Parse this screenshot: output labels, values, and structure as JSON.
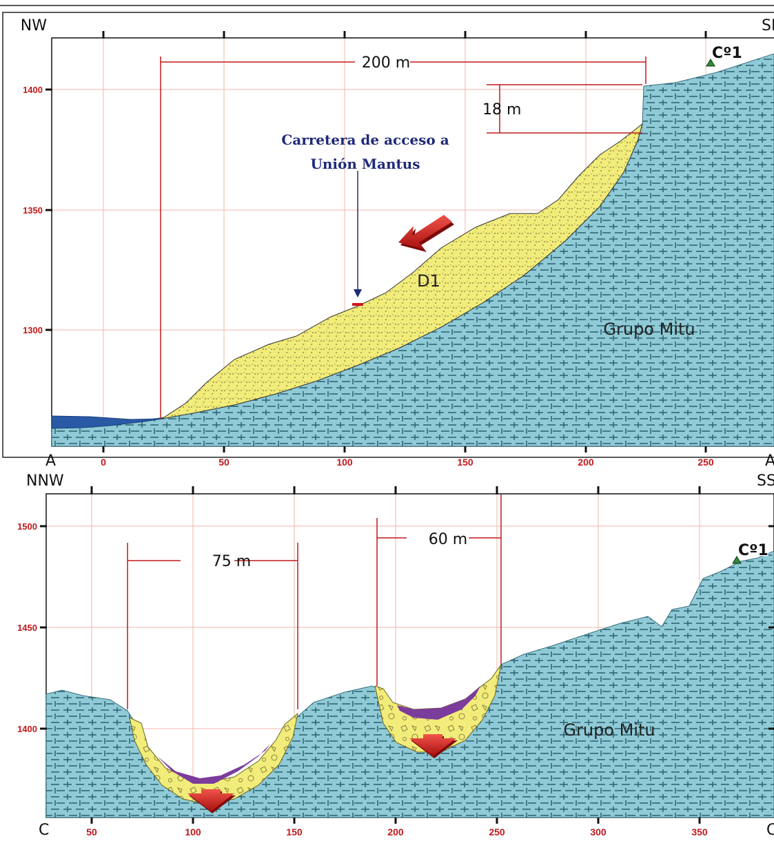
{
  "section_top": {
    "corners": {
      "top_left": "NW",
      "top_right": "SE",
      "bottom_left": "A",
      "bottom_right": "A'"
    },
    "x_ticks": [
      "0",
      "50",
      "100",
      "150",
      "200",
      "250"
    ],
    "y_ticks": [
      "1400",
      "1350",
      "1300"
    ],
    "dimension_width": "200 m",
    "dimension_height": "18 m",
    "road_label_line1": "Carretera de acceso a",
    "road_label_line2": "Unión Mantus",
    "deposit_label": "D1",
    "unit_label": "Grupo Mitu",
    "hill_label": "Cº1"
  },
  "section_bottom": {
    "corners": {
      "top_left": "NNW",
      "top_right": "SSE",
      "bottom_left": "C",
      "bottom_right": "C'"
    },
    "x_ticks": [
      "50",
      "100",
      "150",
      "200",
      "250",
      "300",
      "350"
    ],
    "y_ticks": [
      "1500",
      "1450",
      "1400"
    ],
    "dimension_left": "75 m",
    "dimension_right": "60 m",
    "unit_label": "Grupo Mitu",
    "hill_label": "Cº1"
  },
  "colors": {
    "rock": "#8fcad6",
    "deposit": "#f2ec7a",
    "purple": "#7b3c9c",
    "water": "#2a5aa6",
    "red": "#c0181a",
    "grid": "#f2b5a8"
  }
}
